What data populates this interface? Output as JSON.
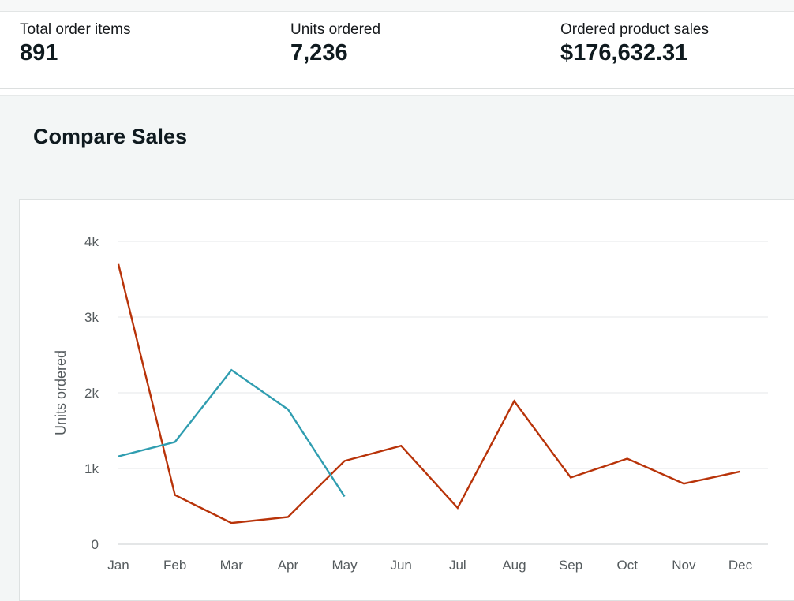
{
  "metrics": [
    {
      "label": "Total order items",
      "value": "891"
    },
    {
      "label": "Units ordered",
      "value": "7,236"
    },
    {
      "label": "Ordered product sales",
      "value": "$176,632.31"
    }
  ],
  "section": {
    "title": "Compare Sales"
  },
  "chart_data": {
    "type": "line",
    "categories": [
      "Jan",
      "Feb",
      "Mar",
      "Apr",
      "May",
      "Jun",
      "Jul",
      "Aug",
      "Sep",
      "Oct",
      "Nov",
      "Dec"
    ],
    "series": [
      {
        "color": "#b83309",
        "values": [
          3700,
          650,
          280,
          360,
          1100,
          1300,
          480,
          1890,
          880,
          1130,
          800,
          960
        ]
      },
      {
        "color": "#2f9db0",
        "values": [
          1160,
          1350,
          2300,
          1780,
          630,
          null,
          null,
          null,
          null,
          null,
          null,
          null
        ]
      }
    ],
    "ylabel": "Units ordered",
    "ylim": [
      0,
      4000
    ],
    "yticks": [
      0,
      1000,
      2000,
      3000,
      4000
    ],
    "ytick_labels": [
      "0",
      "1k",
      "2k",
      "3k",
      "4k"
    ],
    "grid": true,
    "legend": "none"
  }
}
